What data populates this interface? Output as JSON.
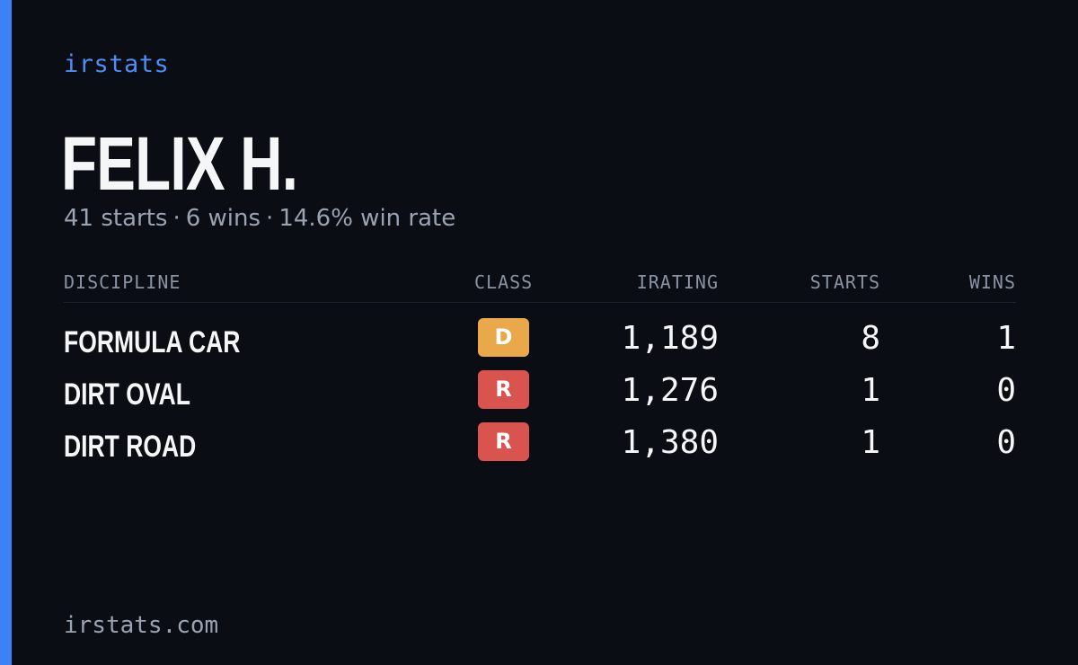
{
  "brand": "irstats",
  "driver": {
    "name": "FELIX H.",
    "starts": "41 starts",
    "wins": "6 wins",
    "win_rate": "14.6% win rate",
    "separator": "·"
  },
  "table": {
    "headers": {
      "discipline": "DISCIPLINE",
      "class": "CLASS",
      "irating": "IRATING",
      "starts": "STARTS",
      "wins": "WINS"
    },
    "rows": [
      {
        "discipline": "FORMULA CAR",
        "class": "D",
        "class_color": "#e9a94a",
        "irating": "1,189",
        "starts": "8",
        "wins": "1"
      },
      {
        "discipline": "DIRT OVAL",
        "class": "R",
        "class_color": "#d9534f",
        "irating": "1,276",
        "starts": "1",
        "wins": "0"
      },
      {
        "discipline": "DIRT ROAD",
        "class": "R",
        "class_color": "#d9534f",
        "irating": "1,380",
        "starts": "1",
        "wins": "0"
      }
    ]
  },
  "footer": "irstats.com",
  "colors": {
    "accent": "#3b82f6",
    "background": "#0a0d14"
  }
}
